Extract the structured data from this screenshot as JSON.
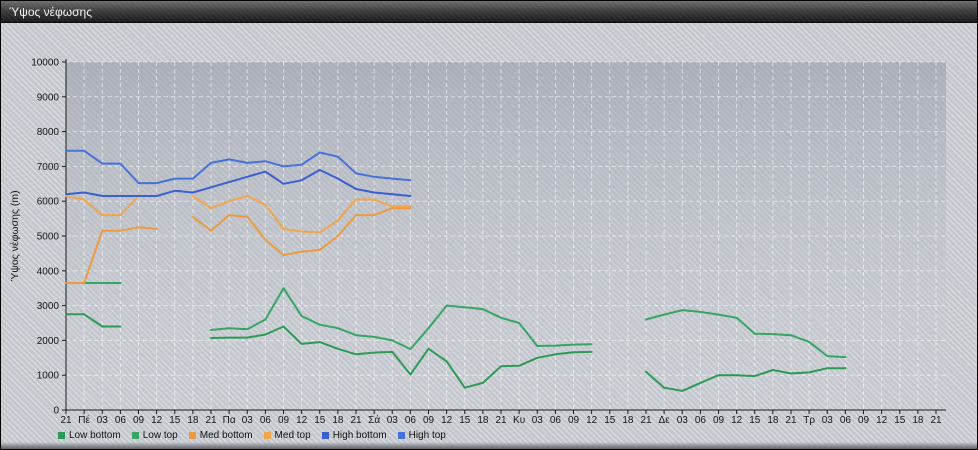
{
  "window": {
    "title": "Ύψος νέφωσης"
  },
  "chart_data": {
    "type": "line",
    "title": "Ύψος νέφωσης",
    "ylabel": "Ύψος νέφωσης (m)",
    "ylim": [
      0,
      10000
    ],
    "ytick_step": 1000,
    "grid": true,
    "legend_position": "bottom-left",
    "categories": [
      "21",
      "Πέ",
      "03",
      "06",
      "09",
      "12",
      "15",
      "18",
      "21",
      "Πα",
      "03",
      "06",
      "09",
      "12",
      "15",
      "18",
      "21",
      "Σά",
      "03",
      "06",
      "09",
      "12",
      "15",
      "18",
      "21",
      "Κυ",
      "03",
      "06",
      "09",
      "12",
      "15",
      "18",
      "21",
      "Δε",
      "03",
      "06",
      "09",
      "12",
      "15",
      "18",
      "21",
      "Τρ",
      "03",
      "06",
      "09",
      "12",
      "15",
      "18",
      "21"
    ],
    "series": [
      {
        "name": "Low bottom",
        "color": "#2e9a56",
        "values": [
          2750,
          2750,
          2400,
          2400,
          null,
          null,
          null,
          null,
          2070,
          2080,
          2080,
          2170,
          2400,
          1900,
          1950,
          1760,
          1600,
          1650,
          1670,
          1020,
          1760,
          1400,
          640,
          780,
          1260,
          1270,
          1500,
          1600,
          1660,
          1670,
          null,
          null,
          1100,
          640,
          550,
          780,
          1000,
          1000,
          975,
          1150,
          1050,
          1080,
          1200,
          1200,
          null,
          null,
          null,
          null,
          null
        ]
      },
      {
        "name": "Low top",
        "color": "#36a566",
        "values": [
          3650,
          3650,
          3650,
          3650,
          null,
          null,
          null,
          null,
          2300,
          2350,
          2320,
          2600,
          3500,
          2700,
          2450,
          2350,
          2150,
          2100,
          2000,
          1750,
          2350,
          3000,
          2950,
          2900,
          2650,
          2500,
          1840,
          1850,
          1880,
          1890,
          null,
          null,
          2600,
          2740,
          2870,
          2820,
          2740,
          2650,
          2190,
          2180,
          2150,
          1960,
          1550,
          1520,
          null,
          null,
          null,
          null,
          null
        ]
      },
      {
        "name": "Med bottom",
        "color": "#eb9c43",
        "values": [
          3650,
          3650,
          5150,
          5150,
          5250,
          5200,
          null,
          5550,
          5150,
          5600,
          5550,
          4900,
          4450,
          4550,
          4600,
          5000,
          5600,
          5600,
          5800,
          5800,
          null,
          null,
          null,
          null,
          null,
          null,
          null,
          null,
          null,
          null,
          null,
          null,
          null,
          null,
          null,
          null,
          null,
          null,
          null,
          null,
          null,
          null,
          null,
          null,
          null,
          null,
          null,
          null,
          null
        ]
      },
      {
        "name": "Med top",
        "color": "#f2a64b",
        "values": [
          6150,
          6050,
          5600,
          5600,
          6150,
          6150,
          null,
          6150,
          5800,
          6000,
          6150,
          5900,
          5200,
          5130,
          5100,
          5450,
          6050,
          6050,
          5850,
          5850,
          null,
          null,
          null,
          null,
          null,
          null,
          null,
          null,
          null,
          null,
          null,
          null,
          null,
          null,
          null,
          null,
          null,
          null,
          null,
          null,
          null,
          null,
          null,
          null,
          null,
          null,
          null,
          null,
          null
        ]
      },
      {
        "name": "High bottom",
        "color": "#3a5fd0",
        "values": [
          6200,
          6250,
          6150,
          6150,
          6150,
          6150,
          6300,
          6250,
          6400,
          6550,
          6700,
          6850,
          6500,
          6600,
          6900,
          6650,
          6350,
          6250,
          6200,
          6150,
          null,
          null,
          null,
          null,
          null,
          null,
          null,
          null,
          null,
          null,
          null,
          null,
          null,
          null,
          null,
          null,
          null,
          null,
          null,
          null,
          null,
          null,
          null,
          null,
          null,
          null,
          null,
          null,
          null
        ]
      },
      {
        "name": "High top",
        "color": "#4672dc",
        "values": [
          7450,
          7450,
          7080,
          7080,
          6520,
          6520,
          6650,
          6650,
          7100,
          7200,
          7100,
          7150,
          7000,
          7050,
          7400,
          7280,
          6800,
          6700,
          6650,
          6600,
          null,
          null,
          null,
          null,
          null,
          null,
          null,
          null,
          null,
          null,
          null,
          null,
          null,
          null,
          null,
          null,
          null,
          null,
          null,
          null,
          null,
          null,
          null,
          null,
          null,
          null,
          null,
          null,
          null
        ]
      }
    ]
  }
}
